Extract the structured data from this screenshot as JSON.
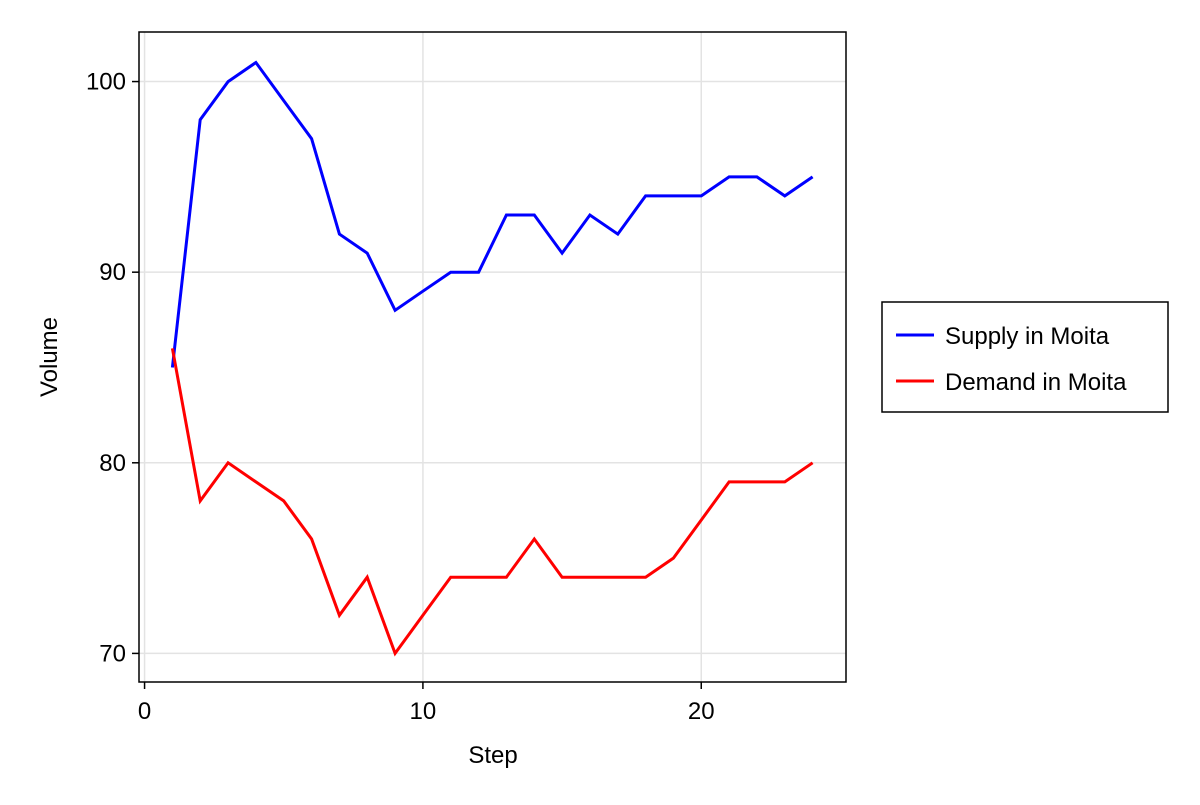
{
  "chart_data": {
    "type": "line",
    "title": "",
    "xlabel": "Step",
    "ylabel": "Volume",
    "xlim": [
      -0.2,
      25.2
    ],
    "ylim": [
      68.5,
      102.6
    ],
    "xticks": [
      0,
      10,
      20
    ],
    "yticks": [
      70,
      80,
      90,
      100
    ],
    "grid": true,
    "legend_position": "right",
    "x": [
      1,
      2,
      3,
      4,
      5,
      6,
      7,
      8,
      9,
      10,
      11,
      12,
      13,
      14,
      15,
      16,
      17,
      18,
      19,
      20,
      21,
      22,
      23,
      24
    ],
    "series": [
      {
        "name": "Supply in Moita",
        "color": "#0000ff",
        "values": [
          85,
          98,
          100,
          101,
          99,
          97,
          92,
          91,
          88,
          89,
          90,
          90,
          93,
          93,
          91,
          93,
          92,
          94,
          94,
          94,
          95,
          95,
          94,
          95
        ]
      },
      {
        "name": "Demand in Moita",
        "color": "#ff0000",
        "values": [
          86,
          78,
          80,
          79,
          78,
          76,
          72,
          74,
          70,
          72,
          74,
          74,
          74,
          76,
          74,
          74,
          74,
          74,
          75,
          77,
          79,
          79,
          79,
          80
        ]
      }
    ]
  }
}
